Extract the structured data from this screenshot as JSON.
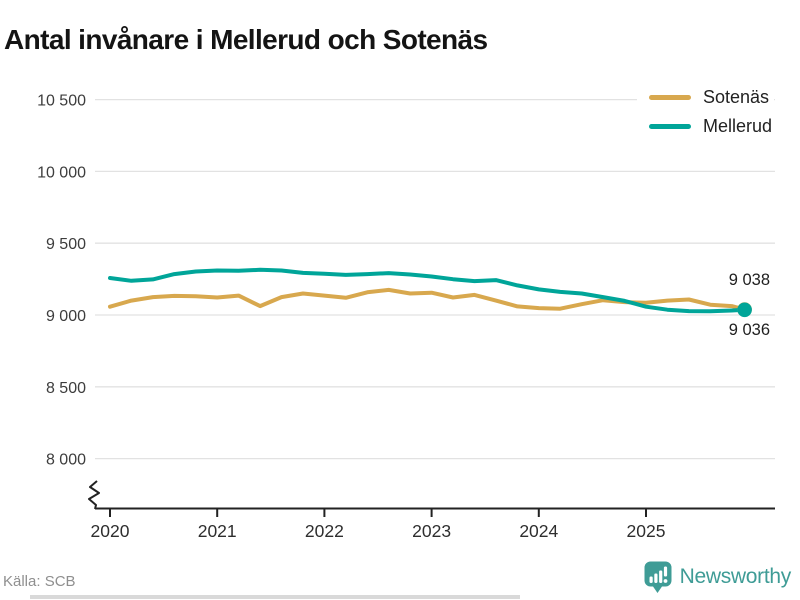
{
  "title": "Antal invånare i Mellerud och Sotenäs",
  "source": "Källa: SCB",
  "branding": {
    "name": "Newsworthy",
    "color": "#3f9c96"
  },
  "legend": {
    "items": [
      {
        "label": "Sotenäs",
        "color": "#d8a84e"
      },
      {
        "label": "Mellerud",
        "color": "#00a599"
      }
    ]
  },
  "end_labels": [
    {
      "text": "9 038",
      "series": "Sotenäs"
    },
    {
      "text": "9 036",
      "series": "Mellerud"
    }
  ],
  "chart_data": {
    "type": "line",
    "title": "Antal invånare i Mellerud och Sotenäs",
    "xlabel": "",
    "ylabel": "",
    "x_ticks": [
      2020,
      2021,
      2022,
      2023,
      2024,
      2025
    ],
    "y_ticks": [
      {
        "value": 8000,
        "label": "8 000"
      },
      {
        "value": 8500,
        "label": "8 500"
      },
      {
        "value": 9000,
        "label": "9 000"
      },
      {
        "value": 9500,
        "label": "9 500"
      },
      {
        "value": 10000,
        "label": "10 000"
      },
      {
        "value": 10500,
        "label": "10 500"
      }
    ],
    "ylim": [
      8000,
      10500
    ],
    "xlim": [
      2020,
      2026.2
    ],
    "axis_break": true,
    "grid": "horizontal",
    "legend_position": "top-right",
    "axis_color": "#222222",
    "grid_color": "#e2e2e2",
    "series": [
      {
        "name": "Sotenäs",
        "color": "#d8a84e",
        "end_dot": true,
        "end_value": 9038,
        "points": [
          [
            2020.0,
            9058
          ],
          [
            2020.2,
            9100
          ],
          [
            2020.4,
            9125
          ],
          [
            2020.6,
            9133
          ],
          [
            2020.8,
            9130
          ],
          [
            2021.0,
            9122
          ],
          [
            2021.2,
            9135
          ],
          [
            2021.4,
            9062
          ],
          [
            2021.6,
            9125
          ],
          [
            2021.8,
            9150
          ],
          [
            2022.0,
            9135
          ],
          [
            2022.2,
            9120
          ],
          [
            2022.4,
            9158
          ],
          [
            2022.6,
            9175
          ],
          [
            2022.8,
            9150
          ],
          [
            2023.0,
            9155
          ],
          [
            2023.2,
            9122
          ],
          [
            2023.4,
            9140
          ],
          [
            2023.6,
            9100
          ],
          [
            2023.8,
            9060
          ],
          [
            2024.0,
            9048
          ],
          [
            2024.2,
            9044
          ],
          [
            2024.4,
            9075
          ],
          [
            2024.6,
            9103
          ],
          [
            2024.8,
            9090
          ],
          [
            2025.0,
            9085
          ],
          [
            2025.2,
            9100
          ],
          [
            2025.4,
            9108
          ],
          [
            2025.6,
            9072
          ],
          [
            2025.8,
            9062
          ],
          [
            2025.92,
            9038
          ]
        ]
      },
      {
        "name": "Mellerud",
        "color": "#00a599",
        "end_dot": true,
        "end_value": 9036,
        "points": [
          [
            2020.0,
            9258
          ],
          [
            2020.2,
            9238
          ],
          [
            2020.4,
            9248
          ],
          [
            2020.6,
            9285
          ],
          [
            2020.8,
            9303
          ],
          [
            2021.0,
            9310
          ],
          [
            2021.2,
            9308
          ],
          [
            2021.4,
            9315
          ],
          [
            2021.6,
            9310
          ],
          [
            2021.8,
            9293
          ],
          [
            2022.0,
            9287
          ],
          [
            2022.2,
            9279
          ],
          [
            2022.4,
            9285
          ],
          [
            2022.6,
            9292
          ],
          [
            2022.8,
            9282
          ],
          [
            2023.0,
            9268
          ],
          [
            2023.2,
            9249
          ],
          [
            2023.4,
            9236
          ],
          [
            2023.6,
            9243
          ],
          [
            2023.8,
            9206
          ],
          [
            2024.0,
            9178
          ],
          [
            2024.2,
            9161
          ],
          [
            2024.4,
            9150
          ],
          [
            2024.6,
            9125
          ],
          [
            2024.8,
            9098
          ],
          [
            2025.0,
            9058
          ],
          [
            2025.2,
            9037
          ],
          [
            2025.4,
            9027
          ],
          [
            2025.6,
            9026
          ],
          [
            2025.8,
            9031
          ],
          [
            2025.92,
            9036
          ]
        ]
      }
    ]
  }
}
